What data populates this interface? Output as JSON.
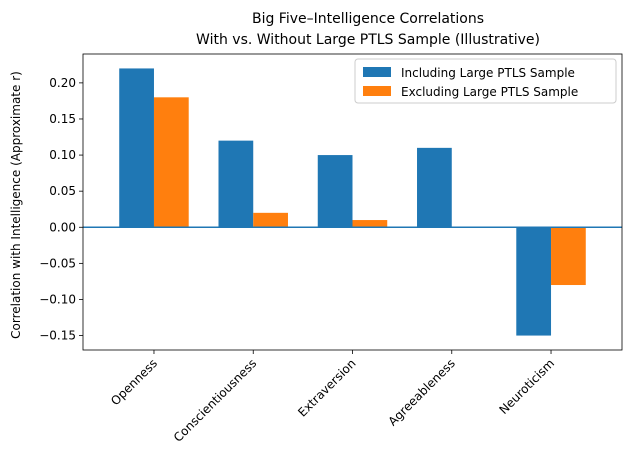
{
  "chart_data": {
    "type": "bar",
    "title": [
      "Big Five–Intelligence Correlations",
      "With vs. Without Large PTLS Sample (Illustrative)"
    ],
    "xlabel": "",
    "ylabel": "Correlation with Intelligence (Approximate r)",
    "categories": [
      "Openness",
      "Conscientiousness",
      "Extraversion",
      "Agreeableness",
      "Neuroticism"
    ],
    "series": [
      {
        "name": "Including Large PTLS Sample",
        "color": "#1f77b4",
        "values": [
          0.22,
          0.12,
          0.1,
          0.11,
          -0.15
        ]
      },
      {
        "name": "Excluding Large PTLS Sample",
        "color": "#ff7f0e",
        "values": [
          0.18,
          0.02,
          0.01,
          0.0,
          -0.08
        ]
      }
    ],
    "ylim": [
      -0.17,
      0.24
    ],
    "yticks": [
      -0.15,
      -0.1,
      -0.05,
      0.0,
      0.05,
      0.1,
      0.15,
      0.2
    ],
    "ytick_labels": [
      "−0.15",
      "−0.10",
      "−0.05",
      "0.00",
      "0.05",
      "0.10",
      "0.15",
      "0.20"
    ],
    "zero_line_color": "#1f77b4",
    "legend_position": "upper right",
    "grid": false
  }
}
